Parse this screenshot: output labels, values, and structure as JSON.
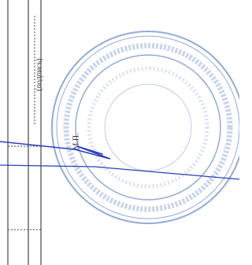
{
  "signature_label": "(подпись)",
  "seal_label": "М.П."
}
